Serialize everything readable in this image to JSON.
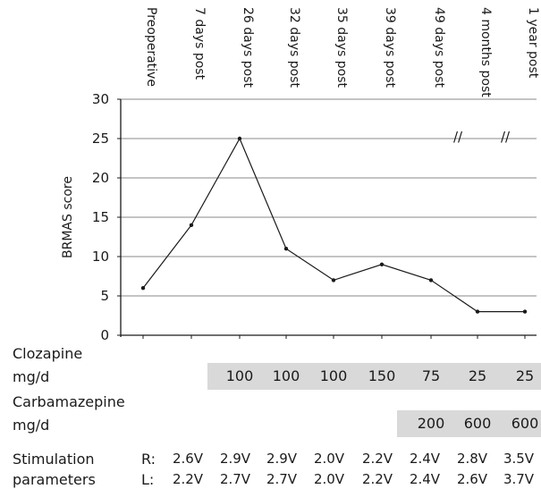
{
  "chart_data": {
    "type": "line",
    "ylabel": "BRMAS score",
    "ylim": [
      0,
      30
    ],
    "yticks": [
      0,
      5,
      10,
      15,
      20,
      25,
      30
    ],
    "grid": true,
    "categories": [
      "Preoperative",
      "7 days post",
      "26 days post",
      "32 days post",
      "35 days post",
      "39 days post",
      "49 days post",
      "4 months post",
      "1 year post"
    ],
    "values": [
      6,
      14,
      25,
      11,
      7,
      9,
      7,
      3,
      3
    ],
    "axis_break_marks": [
      "//",
      "//"
    ]
  },
  "table": {
    "clozapine": {
      "label_line1": "Clozapine",
      "label_line2": "mg/d",
      "values": [
        "",
        "",
        "100",
        "100",
        "100",
        "150",
        "75",
        "25",
        "25"
      ]
    },
    "carbamazepine": {
      "label_line1": "Carbamazepine",
      "label_line2": "mg/d",
      "values": [
        "",
        "",
        "",
        "",
        "",
        "",
        "200",
        "600",
        "600"
      ]
    },
    "stimulation": {
      "label_line1": "Stimulation",
      "label_line2": "parameters",
      "right_label": "R:",
      "left_label": "L:",
      "right": [
        "2.6V",
        "2.9V",
        "2.9V",
        "2.0V",
        "2.2V",
        "2.4V",
        "2.8V",
        "3.5V"
      ],
      "left": [
        "2.2V",
        "2.7V",
        "2.7V",
        "2.0V",
        "2.2V",
        "2.4V",
        "2.6V",
        "3.7V"
      ]
    }
  }
}
